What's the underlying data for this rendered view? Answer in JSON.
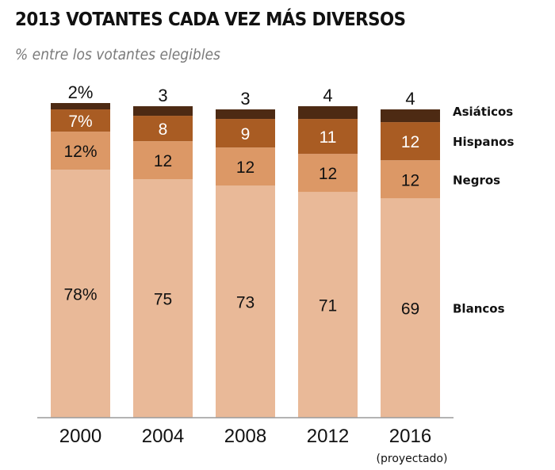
{
  "header": {
    "title": "2013 VOTANTES CADA VEZ MÁS DIVERSOS",
    "subtitle": "% entre los votantes elegibles"
  },
  "chart_data": {
    "type": "bar",
    "stacked": true,
    "title": "2013 VOTANTES CADA VEZ MÁS DIVERSOS",
    "subtitle": "% entre los votantes elegibles",
    "xlabel": "",
    "ylabel": "%",
    "ylim": [
      0,
      100
    ],
    "grid": false,
    "legend_position": "right",
    "categories": [
      "2000",
      "2004",
      "2008",
      "2012",
      "2016"
    ],
    "category_notes": [
      "",
      "",
      "",
      "",
      "(proyectado)"
    ],
    "series": [
      {
        "name": "Blancos",
        "color": "#e9b998",
        "label_color": "#111111",
        "values": [
          78,
          75,
          73,
          71,
          69
        ],
        "labels": [
          "78%",
          "75",
          "73",
          "71",
          "69"
        ]
      },
      {
        "name": "Negros",
        "color": "#dc9866",
        "label_color": "#111111",
        "values": [
          12,
          12,
          12,
          12,
          12
        ],
        "labels": [
          "12%",
          "12",
          "12",
          "12",
          "12"
        ]
      },
      {
        "name": "Hispanos",
        "color": "#a95c23",
        "label_color": "#ffffff",
        "values": [
          7,
          8,
          9,
          11,
          12
        ],
        "labels": [
          "7%",
          "8",
          "9",
          "11",
          "12"
        ]
      },
      {
        "name": "Asiáticos",
        "color": "#4d2a13",
        "label_color": "#111111",
        "values": [
          2,
          3,
          3,
          4,
          4
        ],
        "labels": [
          "2%",
          "3",
          "3",
          "4",
          "4"
        ]
      }
    ]
  }
}
